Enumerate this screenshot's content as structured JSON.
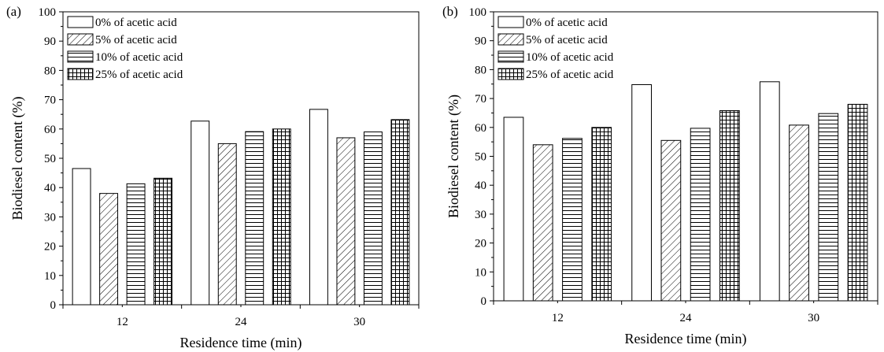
{
  "chart_data": [
    {
      "type": "bar",
      "panel_label": "(a)",
      "categories": [
        "12",
        "24",
        "30"
      ],
      "series": [
        {
          "name": "0% of acetic acid",
          "pattern": "open",
          "values": [
            46.5,
            62.7,
            66.7
          ]
        },
        {
          "name": "5% of acetic acid",
          "pattern": "diagonal",
          "values": [
            38.0,
            55.0,
            57.0
          ]
        },
        {
          "name": "10% of acetic acid",
          "pattern": "horizontal",
          "values": [
            41.3,
            59.1,
            59.0
          ]
        },
        {
          "name": "25% of acetic acid",
          "pattern": "grid",
          "values": [
            43.2,
            60.0,
            63.2
          ]
        }
      ],
      "xlabel": "Residence time (min)",
      "ylabel": "Biodiesel content (%)",
      "ylim": [
        0,
        100
      ],
      "yticks": [
        "0",
        "10",
        "20",
        "30",
        "40",
        "50",
        "60",
        "70",
        "80",
        "90",
        "100"
      ],
      "legend_position": "top-left",
      "grid": false
    },
    {
      "type": "bar",
      "panel_label": "(b)",
      "categories": [
        "12",
        "24",
        "30"
      ],
      "series": [
        {
          "name": "0% of acetic acid",
          "pattern": "open",
          "values": [
            63.5,
            74.8,
            75.8
          ]
        },
        {
          "name": "5% of acetic acid",
          "pattern": "diagonal",
          "values": [
            54.0,
            55.5,
            60.8
          ]
        },
        {
          "name": "10% of acetic acid",
          "pattern": "horizontal",
          "values": [
            56.2,
            59.7,
            64.8
          ]
        },
        {
          "name": "25% of acetic acid",
          "pattern": "grid",
          "values": [
            60.0,
            65.8,
            68.0
          ]
        }
      ],
      "xlabel": "Residence time (min)",
      "ylabel": "Biodiesel content (%)",
      "ylim": [
        0,
        100
      ],
      "yticks": [
        "0",
        "10",
        "20",
        "30",
        "40",
        "50",
        "60",
        "70",
        "80",
        "90",
        "100"
      ],
      "legend_position": "top-left",
      "grid": false
    }
  ]
}
